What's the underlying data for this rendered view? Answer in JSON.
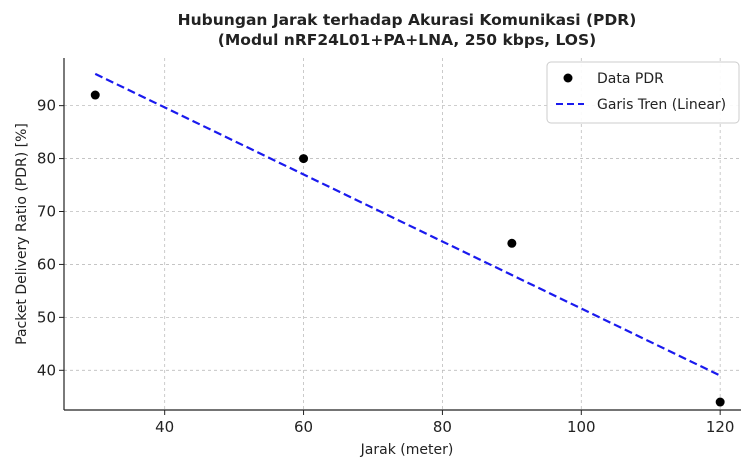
{
  "chart_data": {
    "type": "scatter",
    "title": "Hubungan Jarak terhadap Akurasi Komunikasi (PDR)",
    "subtitle": "(Modul nRF24L01+PA+LNA, 250 kbps, LOS)",
    "xlabel": "Jarak (meter)",
    "ylabel": "Packet Delivery Ratio (PDR) [%]",
    "xlim": [
      25.5,
      123
    ],
    "ylim": [
      32.5,
      99
    ],
    "xticks": [
      40,
      60,
      80,
      100,
      120
    ],
    "yticks": [
      40,
      50,
      60,
      70,
      80,
      90
    ],
    "grid": true,
    "legend_position": "top-right",
    "series": [
      {
        "name": "Data PDR",
        "kind": "points",
        "color": "#000000",
        "x": [
          30,
          60,
          90,
          120
        ],
        "y": [
          92,
          80,
          64,
          34
        ]
      },
      {
        "name": "Garis Tren (Linear)",
        "kind": "line",
        "style": "dashed",
        "color": "#1a1aee",
        "x": [
          30,
          120
        ],
        "y": [
          96,
          39
        ]
      }
    ]
  }
}
